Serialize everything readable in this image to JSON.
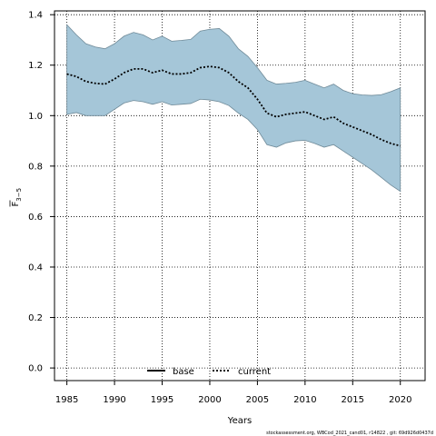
{
  "chart_data": {
    "type": "line",
    "xlabel": "Years",
    "ylabel_main": "F",
    "ylabel_sub": "3−5",
    "xlim": [
      1983.7,
      2022.6
    ],
    "ylim": [
      -0.05,
      1.415
    ],
    "xticks": [
      1985,
      1990,
      1995,
      2000,
      2005,
      2010,
      2015,
      2020
    ],
    "yticks": [
      0.0,
      0.2,
      0.4,
      0.6,
      0.8,
      1.0,
      1.2,
      1.4
    ],
    "ytick_labels": [
      "0.0",
      "0.2",
      "0.4",
      "0.6",
      "0.8",
      "1.0",
      "1.2",
      "1.4"
    ],
    "grid": true,
    "x": [
      1985,
      1986,
      1987,
      1988,
      1989,
      1990,
      1991,
      1992,
      1993,
      1994,
      1995,
      1996,
      1997,
      1998,
      1999,
      2000,
      2001,
      2002,
      2003,
      2004,
      2005,
      2006,
      2007,
      2008,
      2009,
      2010,
      2011,
      2012,
      2013,
      2014,
      2015,
      2016,
      2017,
      2018,
      2019,
      2020
    ],
    "series": [
      {
        "name": "current",
        "style": "dotted",
        "color": "#000000",
        "values": [
          1.165,
          1.155,
          1.135,
          1.128,
          1.125,
          1.145,
          1.17,
          1.185,
          1.185,
          1.17,
          1.18,
          1.165,
          1.165,
          1.17,
          1.19,
          1.195,
          1.19,
          1.17,
          1.135,
          1.11,
          1.065,
          1.01,
          0.995,
          1.005,
          1.01,
          1.015,
          1.0,
          0.985,
          0.995,
          0.97,
          0.955,
          0.94,
          0.925,
          0.905,
          0.89,
          0.88
        ]
      }
    ],
    "band": {
      "fill": "#a5c6d8",
      "stroke": "#6f8a98",
      "upper": [
        1.36,
        1.32,
        1.285,
        1.272,
        1.265,
        1.285,
        1.315,
        1.33,
        1.32,
        1.3,
        1.315,
        1.295,
        1.298,
        1.302,
        1.335,
        1.342,
        1.345,
        1.315,
        1.265,
        1.235,
        1.19,
        1.14,
        1.125,
        1.128,
        1.132,
        1.14,
        1.125,
        1.11,
        1.125,
        1.1,
        1.087,
        1.082,
        1.08,
        1.083,
        1.095,
        1.11
      ],
      "lower": [
        1.005,
        1.012,
        1.0,
        1.0,
        1.0,
        1.025,
        1.05,
        1.06,
        1.055,
        1.045,
        1.055,
        1.042,
        1.045,
        1.048,
        1.065,
        1.062,
        1.055,
        1.04,
        1.01,
        0.985,
        0.945,
        0.885,
        0.875,
        0.892,
        0.9,
        0.902,
        0.89,
        0.875,
        0.885,
        0.86,
        0.835,
        0.81,
        0.785,
        0.755,
        0.725,
        0.7
      ]
    },
    "legend": {
      "placement": "bottom-center",
      "entries": [
        {
          "label": "base",
          "style": "solid",
          "color": "#000000"
        },
        {
          "label": "current",
          "style": "dotted",
          "color": "#000000"
        }
      ]
    },
    "footer": "stockassessment.org, WBCod_2021_cand01, r14822 , git: 69d926d0437d"
  }
}
